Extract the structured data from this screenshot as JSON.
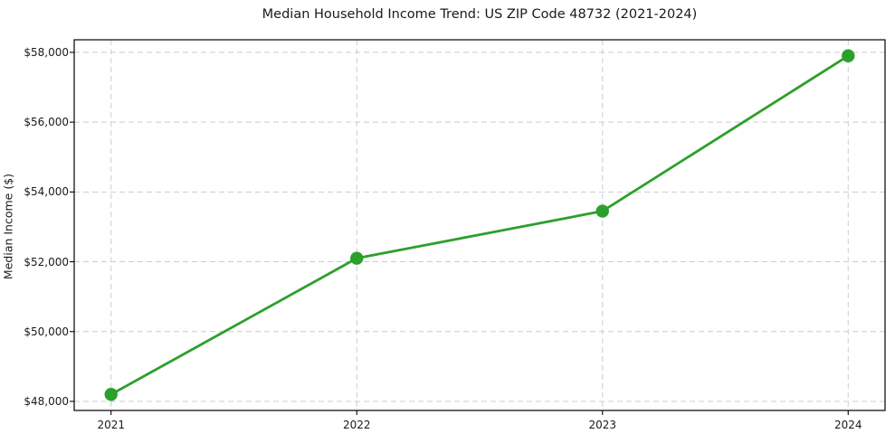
{
  "chart_data": {
    "type": "line",
    "title": "Median Household Income Trend: US ZIP Code 48732 (2021-2024)",
    "xlabel": "",
    "ylabel": "Median Income ($)",
    "series": [
      {
        "name": "Median Household Income",
        "x": [
          2021,
          2022,
          2023,
          2024
        ],
        "values": [
          48200,
          52100,
          53450,
          57900
        ]
      }
    ],
    "xticks": [
      2021,
      2022,
      2023,
      2024
    ],
    "xtick_labels": [
      "2021",
      "2022",
      "2023",
      "2024"
    ],
    "yticks": [
      48000,
      50000,
      52000,
      54000,
      56000,
      58000
    ],
    "ytick_labels": [
      "$48,000",
      "$50,000",
      "$52,000",
      "$54,000",
      "$56,000",
      "$58,000"
    ],
    "xlim": [
      2020.85,
      2024.15
    ],
    "ylim": [
      47740,
      58360
    ],
    "grid": true,
    "grid_style": "dashed",
    "legend_position": "none",
    "colors": {
      "line": "#2ca02c",
      "marker": "#2ca02c",
      "grid": "#cccccc",
      "spine": "#000000",
      "text": "#1a1a1a",
      "background": "#ffffff"
    },
    "style": {
      "line_width": 2.8,
      "marker_radius": 7.2,
      "marker_shape": "circle"
    }
  }
}
